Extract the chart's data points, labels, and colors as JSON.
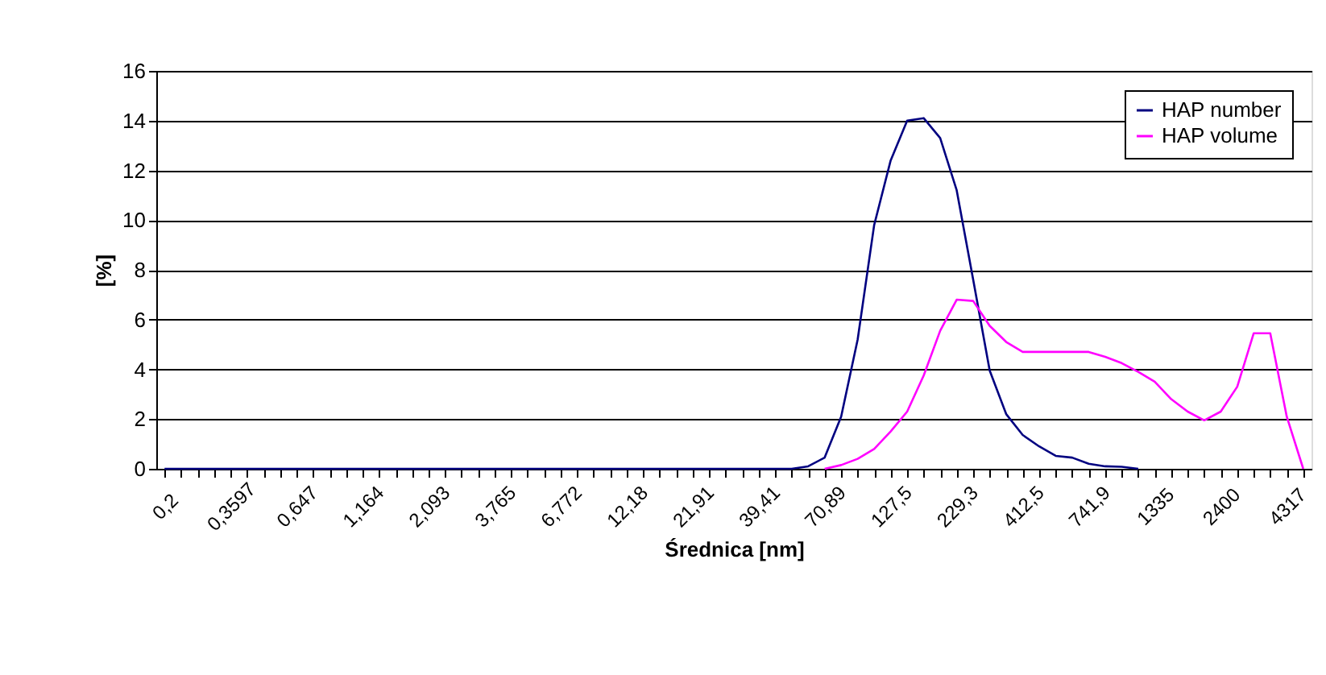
{
  "chart_data": {
    "type": "line",
    "xlabel": "Średnica [nm]",
    "ylabel": "[%]",
    "categories": [
      "0,2",
      null,
      null,
      null,
      "0,3597",
      null,
      null,
      null,
      "0,647",
      null,
      null,
      null,
      "1,164",
      null,
      null,
      null,
      "2,093",
      null,
      null,
      null,
      "3,765",
      null,
      null,
      null,
      "6,772",
      null,
      null,
      null,
      "12,18",
      null,
      null,
      null,
      "21,91",
      null,
      null,
      null,
      "39,41",
      null,
      null,
      null,
      "70,89",
      null,
      null,
      null,
      "127,5",
      null,
      null,
      null,
      "229,3",
      null,
      null,
      null,
      "412,5",
      null,
      null,
      null,
      "741,9",
      null,
      null,
      null,
      "1335",
      null,
      null,
      null,
      "2400",
      null,
      null,
      null,
      "4317",
      null
    ],
    "series": [
      {
        "name": "HAP number",
        "color": "#000080",
        "values": [
          0,
          0,
          0,
          0,
          0,
          0,
          0,
          0,
          0,
          0,
          0,
          0,
          0,
          0,
          0,
          0,
          0,
          0,
          0,
          0,
          0,
          0,
          0,
          0,
          0,
          0,
          0,
          0,
          0,
          0,
          0,
          0,
          0,
          0,
          0,
          0,
          0,
          0,
          0,
          0.1,
          0.45,
          2.1,
          5.2,
          9.8,
          12.4,
          14.0,
          14.1,
          13.3,
          11.2,
          7.6,
          3.95,
          2.2,
          1.36,
          0.9,
          0.52,
          0.45,
          0.2,
          0.1,
          0.08,
          0,
          null,
          null,
          null,
          null,
          null,
          null,
          null,
          null,
          null,
          null
        ]
      },
      {
        "name": "HAP volume",
        "color": "#ff00ff",
        "values": [
          null,
          null,
          null,
          null,
          null,
          null,
          null,
          null,
          null,
          null,
          null,
          null,
          null,
          null,
          null,
          null,
          null,
          null,
          null,
          null,
          null,
          null,
          null,
          null,
          null,
          null,
          null,
          null,
          null,
          null,
          null,
          null,
          null,
          null,
          null,
          null,
          null,
          null,
          null,
          null,
          0,
          0.15,
          0.4,
          0.8,
          1.5,
          2.3,
          3.75,
          5.55,
          6.8,
          6.75,
          5.75,
          5.1,
          4.7,
          4.7,
          4.7,
          4.7,
          4.7,
          4.5,
          4.25,
          3.9,
          3.5,
          2.8,
          2.3,
          1.95,
          2.3,
          3.3,
          5.45,
          5.45,
          2.1,
          0
        ]
      }
    ],
    "ylim": [
      0,
      16
    ],
    "yticks": [
      0,
      2,
      4,
      6,
      8,
      10,
      12,
      14,
      16
    ],
    "grid": "y",
    "legend": "top right"
  }
}
